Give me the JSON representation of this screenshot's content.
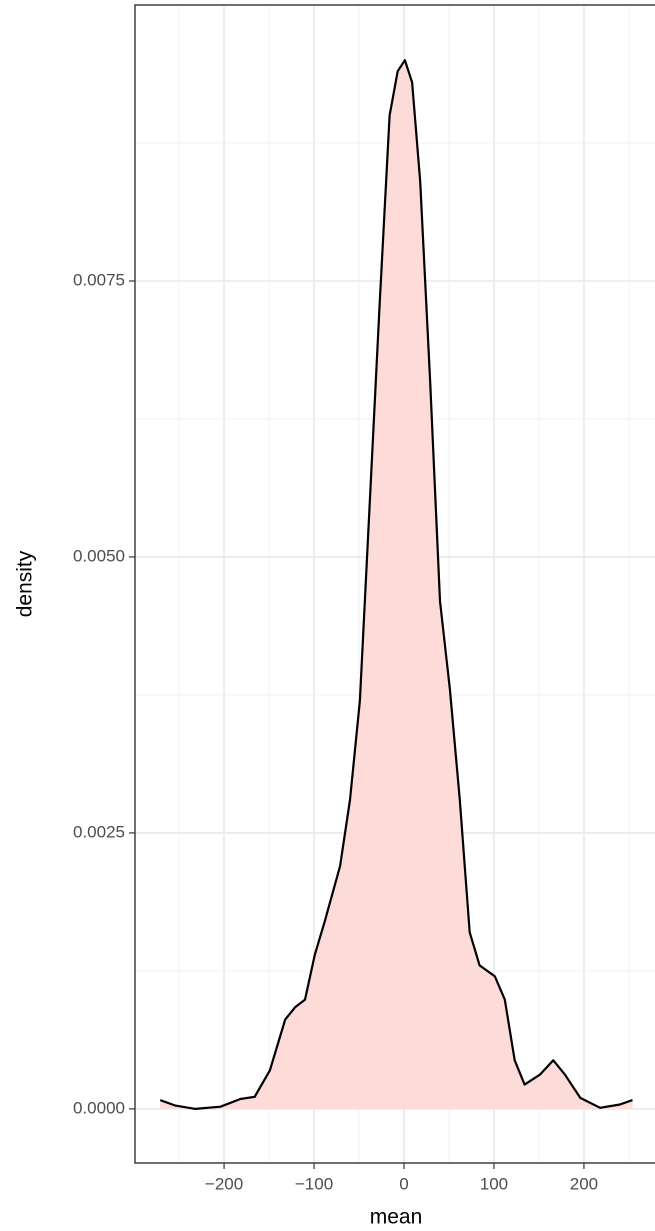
{
  "chart_data": {
    "type": "density",
    "x_label": "mean",
    "y_label": "density",
    "x": [
      -271,
      -254,
      -232,
      -204,
      -182,
      -166,
      -149,
      -132,
      -121,
      -110,
      -99,
      -88,
      -71,
      -60,
      -49,
      -38,
      -27,
      -16,
      -7,
      1,
      9,
      18,
      29,
      40,
      51,
      62,
      73,
      84,
      101,
      112,
      123,
      134,
      151,
      166,
      179,
      196,
      218,
      240,
      254
    ],
    "series": [
      {
        "name": "density",
        "color": "#000000",
        "fill": "#fddbd8",
        "values": [
          8e-05,
          3e-05,
          0,
          2e-05,
          9e-05,
          0.00011,
          0.00035,
          0.00081,
          0.00092,
          0.00099,
          0.0014,
          0.0017,
          0.0022,
          0.0028,
          0.0037,
          0.0055,
          0.0073,
          0.009,
          0.0094,
          0.0095,
          0.0093,
          0.0084,
          0.0066,
          0.0046,
          0.0038,
          0.0028,
          0.0016,
          0.0013,
          0.0012,
          0.00099,
          0.00044,
          0.00022,
          0.00031,
          0.00044,
          0.00031,
          0.0001,
          1e-05,
          4e-05,
          8e-05
        ]
      }
    ],
    "xlim": [
      -299,
      279
    ],
    "ylim": [
      -0.00049,
      0.01
    ],
    "xticks": [
      {
        "value": -200,
        "label": "−200"
      },
      {
        "value": -100,
        "label": "−100"
      },
      0,
      100,
      200
    ],
    "yticks": [
      {
        "value": 0,
        "label": "0.0000"
      },
      {
        "value": 0.0025,
        "label": "0.0025"
      },
      {
        "value": 0.005,
        "label": "0.0050"
      },
      {
        "value": 0.0075,
        "label": "0.0075"
      }
    ],
    "grid": true
  }
}
